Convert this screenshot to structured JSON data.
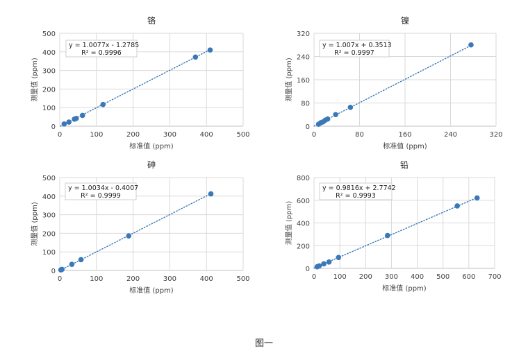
{
  "figure": {
    "caption": "图一"
  },
  "colors": {
    "marker": "#3a78b8",
    "trendline": "#3a78b8",
    "grid": "#d9d9d9",
    "axis": "#bfbfbf",
    "text": "#404040"
  },
  "chart_data": [
    {
      "type": "scatter",
      "title": "铬",
      "xlabel": "标准值 (ppm)",
      "ylabel": "测量值 (ppm)",
      "xlim": [
        0,
        500
      ],
      "ylim": [
        0,
        500
      ],
      "xticks": [
        0,
        100,
        200,
        300,
        400,
        500
      ],
      "yticks": [
        0,
        100,
        200,
        300,
        400,
        500
      ],
      "grid": true,
      "trendline": {
        "slope": 1.0077,
        "intercept": -1.2785,
        "style": "dotted"
      },
      "equation": "y = 1.0077x - 1.2785",
      "r2": "R² = 0.9996",
      "points": [
        [
          12,
          12
        ],
        [
          25,
          22
        ],
        [
          40,
          38
        ],
        [
          45,
          42
        ],
        [
          62,
          58
        ],
        [
          118,
          117
        ],
        [
          370,
          372
        ],
        [
          410,
          410
        ]
      ]
    },
    {
      "type": "scatter",
      "title": "镍",
      "xlabel": "标准值 (ppm)",
      "ylabel": "测量值 (ppm)",
      "xlim": [
        0,
        320
      ],
      "ylim": [
        0,
        320
      ],
      "xticks": [
        0,
        80,
        160,
        240,
        320
      ],
      "yticks": [
        0,
        80,
        160,
        240,
        320
      ],
      "grid": true,
      "trendline": {
        "slope": 1.007,
        "intercept": 0.3513,
        "style": "dotted"
      },
      "equation": "y = 1.007x + 0.3513",
      "r2": "R² = 0.9997",
      "points": [
        [
          8,
          7
        ],
        [
          12,
          12
        ],
        [
          16,
          15
        ],
        [
          20,
          21
        ],
        [
          24,
          25
        ],
        [
          38,
          40
        ],
        [
          64,
          65
        ],
        [
          276,
          280
        ]
      ]
    },
    {
      "type": "scatter",
      "title": "砷",
      "xlabel": "标准值 (ppm)",
      "ylabel": "测量值 (ppm)",
      "xlim": [
        0,
        500
      ],
      "ylim": [
        0,
        500
      ],
      "xticks": [
        0,
        100,
        200,
        300,
        400,
        500
      ],
      "yticks": [
        0,
        100,
        200,
        300,
        400,
        500
      ],
      "grid": true,
      "trendline": {
        "slope": 1.0034,
        "intercept": -0.4007,
        "style": "dotted"
      },
      "equation": "y = 1.0034x - 0.4007",
      "r2": "R² = 0.9999",
      "points": [
        [
          3,
          3
        ],
        [
          6,
          6
        ],
        [
          33,
          33
        ],
        [
          58,
          58
        ],
        [
          188,
          186
        ],
        [
          412,
          412
        ]
      ]
    },
    {
      "type": "scatter",
      "title": "铅",
      "xlabel": "标准值 (ppm)",
      "ylabel": "测量值 (ppm)",
      "xlim": [
        0,
        700
      ],
      "ylim": [
        0,
        800
      ],
      "xticks": [
        0,
        100,
        200,
        300,
        400,
        500,
        600,
        700
      ],
      "yticks": [
        0,
        200,
        400,
        600,
        800
      ],
      "grid": true,
      "trendline": {
        "slope": 0.9816,
        "intercept": 2.7742,
        "style": "dotted"
      },
      "equation": "y = 0.9816x + 2.7742",
      "r2": "R² = 0.9993",
      "points": [
        [
          12,
          14
        ],
        [
          20,
          22
        ],
        [
          38,
          40
        ],
        [
          58,
          56
        ],
        [
          95,
          96
        ],
        [
          285,
          290
        ],
        [
          555,
          550
        ],
        [
          632,
          620
        ]
      ]
    }
  ]
}
